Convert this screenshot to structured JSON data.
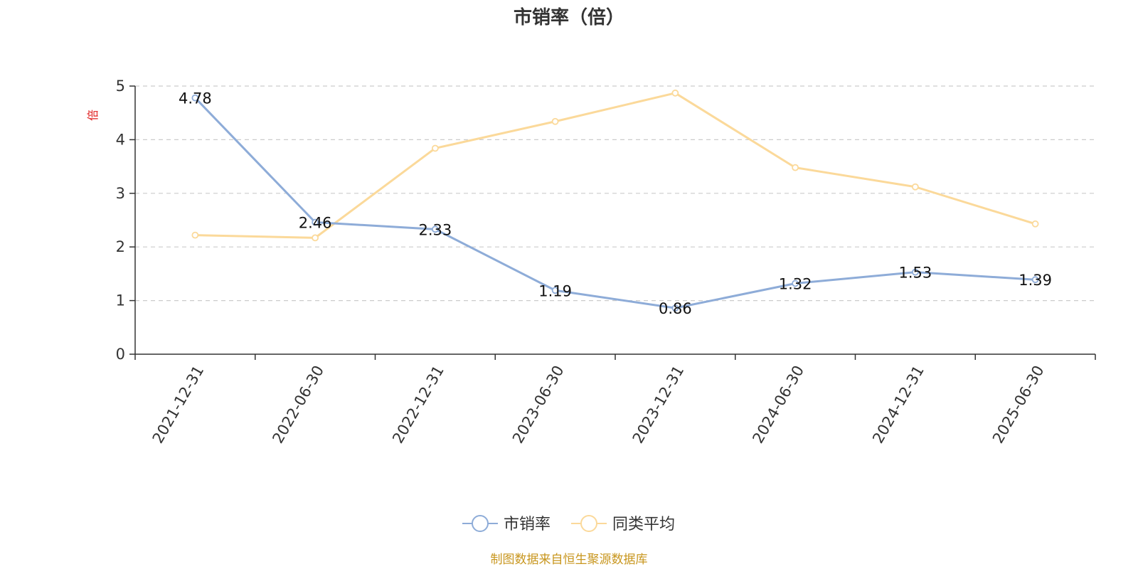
{
  "chart_data": {
    "type": "line",
    "title": "市销率（倍）",
    "ylabel": "倍",
    "xlabel": "",
    "categories": [
      "2021-12-31",
      "2022-06-30",
      "2022-12-31",
      "2023-06-30",
      "2023-12-31",
      "2024-06-30",
      "2024-12-31",
      "2025-06-30"
    ],
    "ylim": [
      0,
      5
    ],
    "yticks": [
      0,
      1,
      2,
      3,
      4,
      5
    ],
    "grid": "horizontal dashed",
    "legend_position": "bottom-center",
    "series": [
      {
        "name": "市销率",
        "color": "#8eacd8",
        "values": [
          4.78,
          2.46,
          2.33,
          1.19,
          0.86,
          1.32,
          1.53,
          1.39
        ],
        "labels": [
          "4.78",
          "2.46",
          "2.33",
          "1.19",
          "0.86",
          "1.32",
          "1.53",
          "1.39"
        ],
        "show_labels": true
      },
      {
        "name": "同类平均",
        "color": "#fbd99a",
        "values": [
          2.22,
          2.17,
          3.84,
          4.34,
          4.87,
          3.48,
          3.12,
          2.43
        ],
        "show_labels": false
      }
    ],
    "source": "制图数据来自恒生聚源数据库"
  }
}
